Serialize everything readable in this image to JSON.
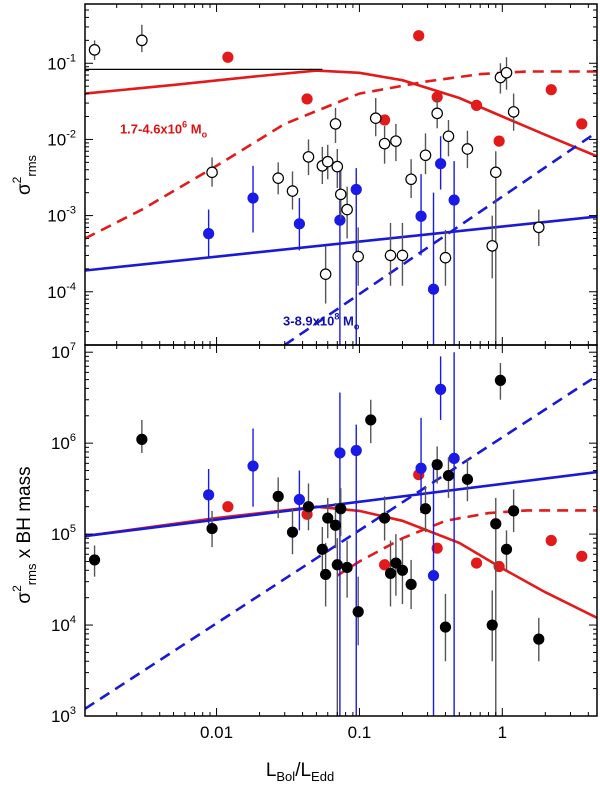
{
  "chart_data": [
    {
      "type": "scatter",
      "panel": "top",
      "xlabel": "L_Bol/L_Edd",
      "ylabel": "σ²_rms",
      "xscale": "log",
      "yscale": "log",
      "xlim": [
        0.0012,
        4.6
      ],
      "ylim": [
        2e-05,
        0.6
      ],
      "xticks": [
        {
          "v": 0.01,
          "base": "0.01",
          "exp": ""
        },
        {
          "v": 0.1,
          "base": "0.1",
          "exp": ""
        },
        {
          "v": 1,
          "base": "1",
          "exp": ""
        }
      ],
      "yticks": [
        {
          "v": 0.0001,
          "base": "10",
          "exp": "-4"
        },
        {
          "v": 0.001,
          "base": "10",
          "exp": "-3"
        },
        {
          "v": 0.01,
          "base": "10",
          "exp": "-2"
        },
        {
          "v": 0.1,
          "base": "10",
          "exp": "-1"
        }
      ],
      "annotations": [
        {
          "text": "1.7-4.6x10",
          "exp": "6",
          "unit": " M",
          "sub": "o",
          "color": "#dd1111",
          "x": 0.0013,
          "y": 0.012
        },
        {
          "text": "3-8.9x10",
          "exp": "8",
          "unit": " M",
          "sub": "o",
          "color": "#1111aa",
          "x": 0.018,
          "y": 3.6e-05
        }
      ],
      "series": [
        {
          "name": "low-mass (red filled)",
          "color": "#e31a1a",
          "fill": true,
          "points": [
            {
              "x": 0.012,
              "y": 0.12
            },
            {
              "x": 0.043,
              "y": 0.034
            },
            {
              "x": 0.15,
              "y": 0.018
            },
            {
              "x": 0.26,
              "y": 0.23
            },
            {
              "x": 0.35,
              "y": 0.036
            },
            {
              "x": 0.66,
              "y": 0.028
            },
            {
              "x": 0.95,
              "y": 0.0095
            },
            {
              "x": 2.2,
              "y": 0.045
            },
            {
              "x": 3.6,
              "y": 0.016
            }
          ]
        },
        {
          "name": "high-mass (blue filled)",
          "color": "#1a1ae6",
          "fill": true,
          "points": [
            {
              "x": 0.0088,
              "y": 0.00058,
              "lo": 0.00028,
              "hi": 0.0012
            },
            {
              "x": 0.018,
              "y": 0.0017,
              "lo": 0.0006,
              "hi": 0.0045
            },
            {
              "x": 0.038,
              "y": 0.00078,
              "lo": 0.00035,
              "hi": 0.0017
            },
            {
              "x": 0.073,
              "y": 0.00087,
              "lo": 1e-06,
              "hi": 0.004
            },
            {
              "x": 0.095,
              "y": 0.0022,
              "lo": 1e-06,
              "hi": 0.0042
            },
            {
              "x": 0.27,
              "y": 0.00098,
              "lo": 0.0003,
              "hi": 0.0035
            },
            {
              "x": 0.33,
              "y": 0.000108,
              "lo": 1e-06,
              "hi": 0.002
            },
            {
              "x": 0.37,
              "y": 0.0048,
              "lo": 0.0022,
              "hi": 0.011
            },
            {
              "x": 0.46,
              "y": 0.0016,
              "lo": 1e-06,
              "hi": 0.0052
            }
          ]
        },
        {
          "name": "intermediate (open black)",
          "color": "#000000",
          "fill": false,
          "points": [
            {
              "x": 0.0014,
              "y": 0.15,
              "lo": 0.11,
              "hi": 0.2
            },
            {
              "x": 0.003,
              "y": 0.2,
              "lo": 0.14,
              "hi": 0.32
            },
            {
              "x": 0.0093,
              "y": 0.0037,
              "lo": 0.0024,
              "hi": 0.0058
            },
            {
              "x": 0.027,
              "y": 0.0031,
              "lo": 0.0019,
              "hi": 0.005
            },
            {
              "x": 0.034,
              "y": 0.0021,
              "lo": 0.0012,
              "hi": 0.0038
            },
            {
              "x": 0.044,
              "y": 0.0059,
              "lo": 0.0034,
              "hi": 0.01
            },
            {
              "x": 0.055,
              "y": 0.0045,
              "lo": 0.0026,
              "hi": 0.008
            },
            {
              "x": 0.06,
              "y": 0.0051,
              "lo": 0.003,
              "hi": 0.0085
            },
            {
              "x": 0.058,
              "y": 0.00017,
              "lo": 7e-05,
              "hi": 0.0004
            },
            {
              "x": 0.068,
              "y": 0.016,
              "lo": 0.009,
              "hi": 0.026
            },
            {
              "x": 0.07,
              "y": 0.0044,
              "lo": 0.0023,
              "hi": 0.0075
            },
            {
              "x": 0.074,
              "y": 0.0019,
              "lo": 0.0009,
              "hi": 0.004
            },
            {
              "x": 0.082,
              "y": 0.0012,
              "lo": 0.0005,
              "hi": 0.0024
            },
            {
              "x": 0.098,
              "y": 0.00029,
              "lo": 0.00012,
              "hi": 0.0007
            },
            {
              "x": 0.13,
              "y": 0.019,
              "lo": 0.011,
              "hi": 0.035
            },
            {
              "x": 0.15,
              "y": 0.0088,
              "lo": 0.0048,
              "hi": 0.015
            },
            {
              "x": 0.165,
              "y": 0.0003,
              "lo": 0.00012,
              "hi": 0.0008
            },
            {
              "x": 0.18,
              "y": 0.0095,
              "lo": 0.0052,
              "hi": 0.016
            },
            {
              "x": 0.2,
              "y": 0.0003,
              "lo": 0.00012,
              "hi": 0.0008
            },
            {
              "x": 0.23,
              "y": 0.003,
              "lo": 0.0017,
              "hi": 0.0055
            },
            {
              "x": 0.29,
              "y": 0.0062,
              "lo": 0.0035,
              "hi": 0.012
            },
            {
              "x": 0.35,
              "y": 0.022,
              "lo": 0.014,
              "hi": 0.035
            },
            {
              "x": 0.4,
              "y": 0.00028,
              "lo": 0.00012,
              "hi": 0.00065
            },
            {
              "x": 0.42,
              "y": 0.011,
              "lo": 0.006,
              "hi": 0.018
            },
            {
              "x": 0.57,
              "y": 0.0075,
              "lo": 0.0042,
              "hi": 0.013
            },
            {
              "x": 0.85,
              "y": 0.0004,
              "lo": 0.00015,
              "hi": 0.001
            },
            {
              "x": 0.9,
              "y": 0.0037,
              "lo": 1e-06,
              "hi": 0.007
            },
            {
              "x": 0.97,
              "y": 0.065,
              "lo": 0.04,
              "hi": 0.1
            },
            {
              "x": 1.07,
              "y": 0.075,
              "lo": 0.045,
              "hi": 0.12
            },
            {
              "x": 1.2,
              "y": 0.023,
              "lo": 0.013,
              "hi": 0.04
            },
            {
              "x": 1.8,
              "y": 0.0007,
              "lo": 0.0004,
              "hi": 0.0012
            }
          ]
        }
      ],
      "curves": [
        {
          "name": "red solid model",
          "color": "#e31a1a",
          "dash": false,
          "x": [
            0.0012,
            0.005,
            0.02,
            0.05,
            0.1,
            0.2,
            0.5,
            1,
            2,
            4.6
          ],
          "y": [
            0.04,
            0.052,
            0.068,
            0.08,
            0.075,
            0.06,
            0.035,
            0.02,
            0.0115,
            0.006
          ]
        },
        {
          "name": "red dashed model",
          "color": "#e31a1a",
          "dash": true,
          "x": [
            0.0012,
            0.003,
            0.01,
            0.03,
            0.1,
            0.3,
            0.7,
            1.5,
            4.6
          ],
          "y": [
            0.0005,
            0.0012,
            0.0045,
            0.016,
            0.04,
            0.058,
            0.072,
            0.078,
            0.078
          ]
        },
        {
          "name": "blue solid model",
          "color": "#1a1ad6",
          "dash": false,
          "x": [
            0.0012,
            4.6
          ],
          "y": [
            0.00019,
            0.00097
          ]
        },
        {
          "name": "blue dashed model",
          "color": "#1a1ad6",
          "dash": true,
          "x": [
            0.03,
            4.6
          ],
          "y": [
            2e-05,
            0.0125
          ]
        },
        {
          "name": "black reference line",
          "color": "#000000",
          "dash": false,
          "thin": true,
          "x": [
            0.0012,
            0.055
          ],
          "y": [
            0.083,
            0.083
          ]
        }
      ]
    },
    {
      "type": "scatter",
      "panel": "bottom",
      "xlabel": "L_Bol/L_Edd",
      "ylabel": "σ²_rms x BH mass",
      "xscale": "log",
      "yscale": "log",
      "xlim": [
        0.0012,
        4.6
      ],
      "ylim": [
        1000,
        12000000
      ],
      "xticks": [
        {
          "v": 0.01,
          "base": "0.01",
          "exp": ""
        },
        {
          "v": 0.1,
          "base": "0.1",
          "exp": ""
        },
        {
          "v": 1,
          "base": "1",
          "exp": ""
        }
      ],
      "yticks": [
        {
          "v": 1000,
          "base": "10",
          "exp": "3"
        },
        {
          "v": 10000,
          "base": "10",
          "exp": "4"
        },
        {
          "v": 100000,
          "base": "10",
          "exp": "5"
        },
        {
          "v": 1000000,
          "base": "10",
          "exp": "6"
        },
        {
          "v": 10000000,
          "base": "10",
          "exp": "7"
        }
      ],
      "annotations": [],
      "series": [
        {
          "name": "low-mass (red filled)",
          "color": "#e31a1a",
          "fill": true,
          "points": [
            {
              "x": 0.012,
              "y": 200000
            },
            {
              "x": 0.043,
              "y": 165000
            },
            {
              "x": 0.15,
              "y": 46000
            },
            {
              "x": 0.26,
              "y": 450000
            },
            {
              "x": 0.35,
              "y": 70000
            },
            {
              "x": 0.66,
              "y": 48000
            },
            {
              "x": 0.95,
              "y": 44000
            },
            {
              "x": 2.2,
              "y": 85000
            },
            {
              "x": 3.6,
              "y": 57000
            }
          ]
        },
        {
          "name": "high-mass (blue filled)",
          "color": "#1a1ae6",
          "fill": true,
          "points": [
            {
              "x": 0.0088,
              "y": 270000,
              "lo": 130000,
              "hi": 520000
            },
            {
              "x": 0.018,
              "y": 560000,
              "lo": 200000,
              "hi": 1450000
            },
            {
              "x": 0.038,
              "y": 240000,
              "lo": 110000,
              "hi": 500000
            },
            {
              "x": 0.073,
              "y": 780000,
              "lo": 1000,
              "hi": 3600000
            },
            {
              "x": 0.095,
              "y": 830000,
              "lo": 1000,
              "hi": 1600000
            },
            {
              "x": 0.27,
              "y": 530000,
              "lo": 170000,
              "hi": 1900000
            },
            {
              "x": 0.33,
              "y": 35000,
              "lo": 1000,
              "hi": 650000
            },
            {
              "x": 0.37,
              "y": 3900000,
              "lo": 1800000,
              "hi": 9000000
            },
            {
              "x": 0.46,
              "y": 680000,
              "lo": 1000,
              "hi": 10000000
            }
          ]
        },
        {
          "name": "intermediate (filled black)",
          "color": "#000000",
          "fill": true,
          "points": [
            {
              "x": 0.0014,
              "y": 52000,
              "lo": 34000,
              "hi": 75000
            },
            {
              "x": 0.003,
              "y": 1100000,
              "lo": 780000,
              "hi": 1800000
            },
            {
              "x": 0.0093,
              "y": 115000,
              "lo": 72000,
              "hi": 180000
            },
            {
              "x": 0.027,
              "y": 260000,
              "lo": 150000,
              "hi": 420000
            },
            {
              "x": 0.034,
              "y": 105000,
              "lo": 60000,
              "hi": 190000
            },
            {
              "x": 0.044,
              "y": 200000,
              "lo": 110000,
              "hi": 360000
            },
            {
              "x": 0.055,
              "y": 68000,
              "lo": 40000,
              "hi": 120000
            },
            {
              "x": 0.06,
              "y": 150000,
              "lo": 90000,
              "hi": 250000
            },
            {
              "x": 0.058,
              "y": 36000,
              "lo": 16000,
              "hi": 80000
            },
            {
              "x": 0.068,
              "y": 125000,
              "lo": 70000,
              "hi": 220000
            },
            {
              "x": 0.07,
              "y": 46000,
              "lo": 1000,
              "hi": 90000
            },
            {
              "x": 0.074,
              "y": 190000,
              "lo": 95000,
              "hi": 320000
            },
            {
              "x": 0.082,
              "y": 43000,
              "lo": 20000,
              "hi": 85000
            },
            {
              "x": 0.098,
              "y": 14000,
              "lo": 6000,
              "hi": 34000
            },
            {
              "x": 0.12,
              "y": 1800000,
              "lo": 1000000,
              "hi": 3000000
            },
            {
              "x": 0.15,
              "y": 150000,
              "lo": 85000,
              "hi": 260000
            },
            {
              "x": 0.18,
              "y": 48000,
              "lo": 21000,
              "hi": 100000
            },
            {
              "x": 0.165,
              "y": 37000,
              "lo": 16000,
              "hi": 85000
            },
            {
              "x": 0.2,
              "y": 40000,
              "lo": 17000,
              "hi": 90000
            },
            {
              "x": 0.23,
              "y": 28000,
              "lo": 15000,
              "hi": 52000
            },
            {
              "x": 0.29,
              "y": 190000,
              "lo": 105000,
              "hi": 330000
            },
            {
              "x": 0.35,
              "y": 580000,
              "lo": 360000,
              "hi": 920000
            },
            {
              "x": 0.4,
              "y": 9500,
              "lo": 4000,
              "hi": 22000
            },
            {
              "x": 0.42,
              "y": 440000,
              "lo": 250000,
              "hi": 700000
            },
            {
              "x": 0.57,
              "y": 400000,
              "lo": 230000,
              "hi": 680000
            },
            {
              "x": 0.85,
              "y": 10000,
              "lo": 4000,
              "hi": 24000
            },
            {
              "x": 0.9,
              "y": 130000,
              "lo": 1000,
              "hi": 250000
            },
            {
              "x": 0.97,
              "y": 4900000,
              "lo": 3000000,
              "hi": 7600000
            },
            {
              "x": 1.07,
              "y": 68000,
              "lo": 40000,
              "hi": 110000
            },
            {
              "x": 1.2,
              "y": 180000,
              "lo": 105000,
              "hi": 310000
            },
            {
              "x": 1.8,
              "y": 7000,
              "lo": 4000,
              "hi": 12000
            }
          ]
        }
      ],
      "curves": [
        {
          "name": "red solid model",
          "color": "#e31a1a",
          "dash": false,
          "x": [
            0.0012,
            0.01,
            0.05,
            0.1,
            0.2,
            0.5,
            1,
            2,
            4.6
          ],
          "y": [
            95000,
            150000,
            200000,
            180000,
            140000,
            80000,
            42000,
            23000,
            12000
          ]
        },
        {
          "name": "red dashed model",
          "color": "#e31a1a",
          "dash": true,
          "x": [
            0.07,
            0.1,
            0.2,
            0.4,
            0.8,
            1.5,
            4.6
          ],
          "y": [
            35000,
            50000,
            90000,
            140000,
            170000,
            182000,
            182000
          ]
        },
        {
          "name": "blue solid model",
          "color": "#1a1ad6",
          "dash": false,
          "x": [
            0.0012,
            4.6
          ],
          "y": [
            95000,
            480000
          ]
        },
        {
          "name": "blue dashed model",
          "color": "#1a1ad6",
          "dash": true,
          "x": [
            0.0012,
            4.6
          ],
          "y": [
            1200,
            5500000
          ]
        }
      ]
    }
  ]
}
